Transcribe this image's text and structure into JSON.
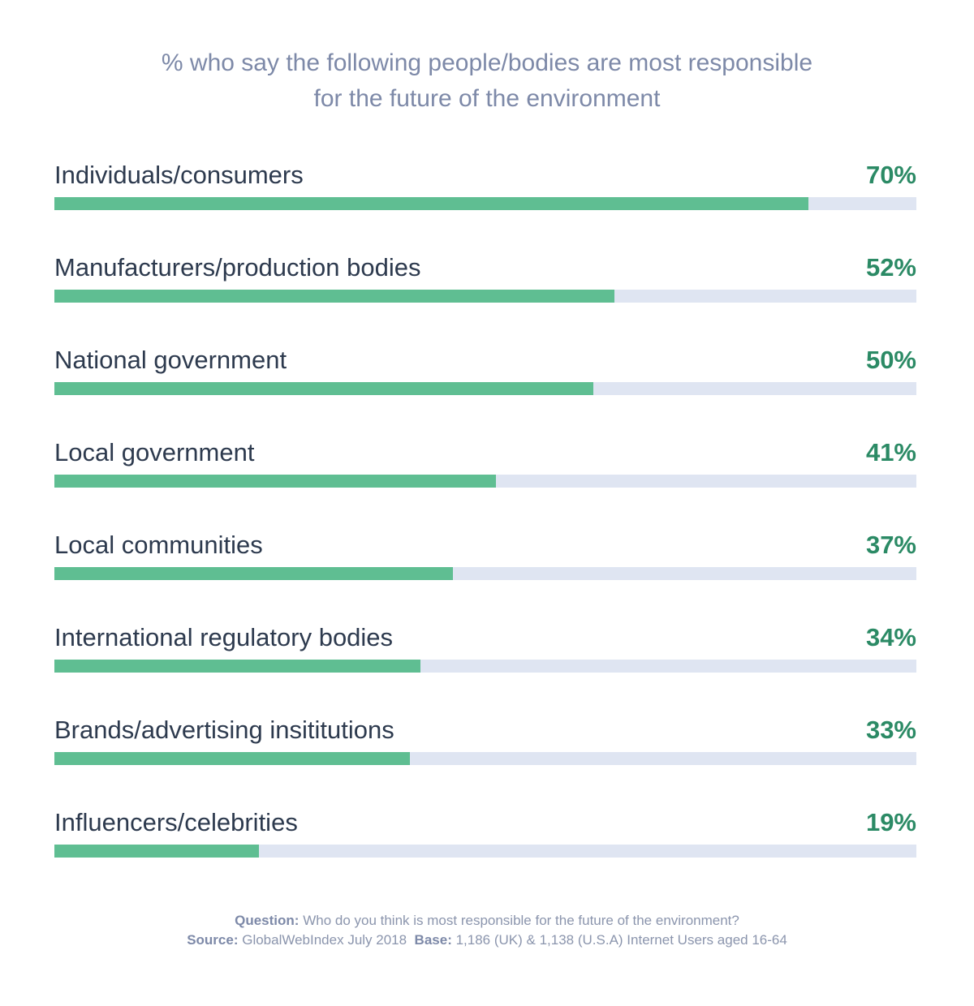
{
  "chart_data": {
    "type": "bar",
    "orientation": "horizontal",
    "title_lines": [
      "% who say the following people/bodies are most responsible",
      "for the future of the environment"
    ],
    "categories": [
      "Individuals/consumers",
      "Manufacturers/production bodies",
      "National government",
      "Local government",
      "Local communities",
      "International regulatory bodies",
      "Brands/advertising insititutions",
      "Influencers/celebrities"
    ],
    "values": [
      70,
      52,
      50,
      41,
      37,
      34,
      33,
      19
    ],
    "value_labels": [
      "70%",
      "52%",
      "50%",
      "41%",
      "37%",
      "34%",
      "33%",
      "19%"
    ],
    "xlim": [
      0,
      80
    ],
    "grid": false,
    "colors": {
      "bar": "#5fbe92",
      "track": "#dfe5f2",
      "value": "#2b8a65"
    }
  },
  "footer": {
    "question_label": "Question:",
    "question_text": "Who do you think is most responsible for the future of the environment?",
    "source_label": "Source:",
    "source_text": "GlobalWebIndex July 2018",
    "base_label": "Base:",
    "base_text": "1,186 (UK) & 1,138 (U.S.A) Internet Users aged 16-64"
  }
}
